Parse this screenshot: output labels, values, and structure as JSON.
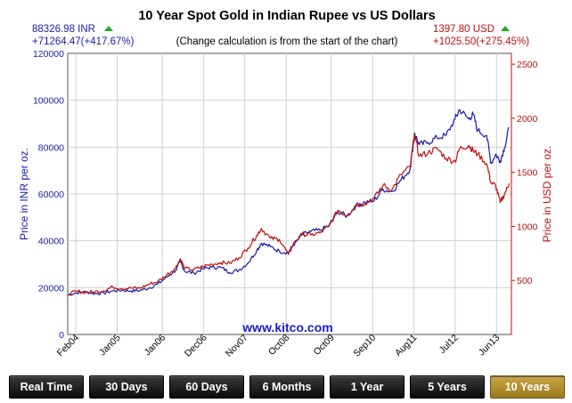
{
  "chart_data": {
    "type": "line",
    "title": "10 Year Spot Gold in Indian Rupee vs US Dollars",
    "subtitle": "(Change calculation is from the start of the chart)",
    "left_price_label": "88326.98 INR",
    "left_change_label": "+71264.47(+417.67%)",
    "right_price_label": "1397.80 USD",
    "right_change_label": "+1025.50(+275.45%)",
    "ylabel_left": "Price in INR per oz.",
    "ylabel_right": "Price in USD per oz.",
    "watermark": "www.kitco.com",
    "ylim_left": [
      0,
      120000
    ],
    "ylim_right": [
      0,
      2600
    ],
    "yticks_left": [
      "0",
      "20000",
      "40000",
      "60000",
      "80000",
      "100000",
      "120000"
    ],
    "yticks_left_values": [
      0,
      20000,
      40000,
      60000,
      80000,
      100000,
      120000
    ],
    "yticks_right": [
      "500",
      "1000",
      "1500",
      "2000",
      "2500"
    ],
    "yticks_right_values": [
      500,
      1000,
      1500,
      2000,
      2500
    ],
    "x_labels": [
      "Feb04",
      "Jan05",
      "Jan06",
      "Dec06",
      "Nov07",
      "Oct08",
      "Oct09",
      "Sep10",
      "Aug11",
      "Jul12",
      "Jun13"
    ],
    "x_label_positions": [
      2004.08,
      2005.0,
      2006.0,
      2006.92,
      2007.83,
      2008.75,
      2009.75,
      2010.67,
      2011.58,
      2012.5,
      2013.42
    ],
    "x_range": [
      2003.9,
      2013.75
    ],
    "series": [
      {
        "name": "INR",
        "color": "#1a1aa6",
        "axis": "left",
        "points": [
          [
            2003.9,
            17000
          ],
          [
            2004.1,
            17800
          ],
          [
            2004.3,
            18200
          ],
          [
            2004.5,
            17500
          ],
          [
            2004.7,
            17700
          ],
          [
            2004.9,
            18600
          ],
          [
            2005.1,
            18900
          ],
          [
            2005.3,
            18600
          ],
          [
            2005.5,
            18800
          ],
          [
            2005.7,
            19800
          ],
          [
            2005.9,
            21500
          ],
          [
            2006.1,
            24500
          ],
          [
            2006.3,
            27500
          ],
          [
            2006.4,
            31000
          ],
          [
            2006.5,
            27000
          ],
          [
            2006.7,
            26200
          ],
          [
            2006.9,
            28000
          ],
          [
            2007.1,
            28800
          ],
          [
            2007.3,
            28600
          ],
          [
            2007.5,
            26500
          ],
          [
            2007.7,
            27500
          ],
          [
            2007.9,
            30500
          ],
          [
            2008.1,
            36000
          ],
          [
            2008.2,
            39000
          ],
          [
            2008.4,
            37500
          ],
          [
            2008.6,
            35500
          ],
          [
            2008.8,
            35000
          ],
          [
            2008.9,
            38000
          ],
          [
            2009.1,
            42500
          ],
          [
            2009.3,
            44000
          ],
          [
            2009.5,
            44500
          ],
          [
            2009.7,
            46500
          ],
          [
            2009.9,
            52500
          ],
          [
            2010.1,
            50500
          ],
          [
            2010.3,
            55000
          ],
          [
            2010.5,
            56500
          ],
          [
            2010.7,
            57000
          ],
          [
            2010.9,
            62000
          ],
          [
            2011.1,
            61000
          ],
          [
            2011.3,
            66000
          ],
          [
            2011.5,
            70500
          ],
          [
            2011.6,
            86000
          ],
          [
            2011.7,
            81000
          ],
          [
            2011.9,
            82000
          ],
          [
            2012.1,
            84000
          ],
          [
            2012.3,
            85000
          ],
          [
            2012.5,
            92000
          ],
          [
            2012.6,
            96000
          ],
          [
            2012.8,
            92000
          ],
          [
            2012.9,
            94000
          ],
          [
            2013.0,
            87000
          ],
          [
            2013.2,
            85000
          ],
          [
            2013.3,
            73000
          ],
          [
            2013.4,
            77000
          ],
          [
            2013.5,
            74000
          ],
          [
            2013.6,
            80000
          ],
          [
            2013.7,
            88300
          ]
        ]
      },
      {
        "name": "USD",
        "color": "#bb1111",
        "axis": "right",
        "points": [
          [
            2003.9,
            372
          ],
          [
            2004.1,
            400
          ],
          [
            2004.3,
            390
          ],
          [
            2004.5,
            395
          ],
          [
            2004.7,
            405
          ],
          [
            2004.9,
            440
          ],
          [
            2005.1,
            425
          ],
          [
            2005.3,
            430
          ],
          [
            2005.5,
            428
          ],
          [
            2005.7,
            465
          ],
          [
            2005.9,
            490
          ],
          [
            2006.1,
            550
          ],
          [
            2006.3,
            620
          ],
          [
            2006.4,
            700
          ],
          [
            2006.5,
            610
          ],
          [
            2006.7,
            600
          ],
          [
            2006.9,
            630
          ],
          [
            2007.1,
            650
          ],
          [
            2007.3,
            665
          ],
          [
            2007.5,
            660
          ],
          [
            2007.7,
            710
          ],
          [
            2007.9,
            800
          ],
          [
            2008.1,
            920
          ],
          [
            2008.2,
            980
          ],
          [
            2008.4,
            890
          ],
          [
            2008.6,
            880
          ],
          [
            2008.8,
            740
          ],
          [
            2008.9,
            830
          ],
          [
            2009.1,
            930
          ],
          [
            2009.3,
            920
          ],
          [
            2009.5,
            940
          ],
          [
            2009.7,
            1000
          ],
          [
            2009.9,
            1150
          ],
          [
            2010.1,
            1100
          ],
          [
            2010.3,
            1200
          ],
          [
            2010.5,
            1210
          ],
          [
            2010.7,
            1260
          ],
          [
            2010.9,
            1380
          ],
          [
            2011.1,
            1340
          ],
          [
            2011.3,
            1480
          ],
          [
            2011.5,
            1550
          ],
          [
            2011.6,
            1850
          ],
          [
            2011.7,
            1650
          ],
          [
            2011.9,
            1680
          ],
          [
            2012.1,
            1720
          ],
          [
            2012.3,
            1630
          ],
          [
            2012.5,
            1600
          ],
          [
            2012.6,
            1720
          ],
          [
            2012.8,
            1750
          ],
          [
            2012.9,
            1700
          ],
          [
            2013.0,
            1670
          ],
          [
            2013.2,
            1580
          ],
          [
            2013.3,
            1400
          ],
          [
            2013.4,
            1380
          ],
          [
            2013.5,
            1220
          ],
          [
            2013.6,
            1300
          ],
          [
            2013.7,
            1397.8
          ]
        ]
      }
    ]
  },
  "range_buttons": [
    {
      "label": "Real Time",
      "active": false
    },
    {
      "label": "30 Days",
      "active": false
    },
    {
      "label": "60 Days",
      "active": false
    },
    {
      "label": "6 Months",
      "active": false
    },
    {
      "label": "1 Year",
      "active": false
    },
    {
      "label": "5 Years",
      "active": false
    },
    {
      "label": "10 Years",
      "active": true
    }
  ],
  "colors": {
    "inr": "#1a1aa6",
    "usd": "#bb1111",
    "up_arrow": "#22aa22",
    "active_button": "#b58f2e"
  }
}
